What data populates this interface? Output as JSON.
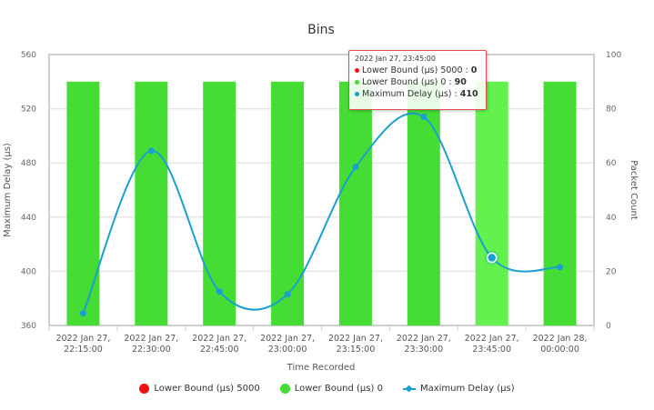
{
  "chart_data": {
    "type": "bar",
    "title": "Bins",
    "xlabel": "Time Recorded",
    "ylabel": "Maximum Delay (µs)",
    "y2label": "Packet Count",
    "categories": [
      [
        "2022 Jan 27,",
        "22:15:00"
      ],
      [
        "2022 Jan 27,",
        "22:30:00"
      ],
      [
        "2022 Jan 27,",
        "22:45:00"
      ],
      [
        "2022 Jan 27,",
        "23:00:00"
      ],
      [
        "2022 Jan 27,",
        "23:15:00"
      ],
      [
        "2022 Jan 27,",
        "23:30:00"
      ],
      [
        "2022 Jan 27,",
        "23:45:00"
      ],
      [
        "2022 Jan 28,",
        "00:00:00"
      ]
    ],
    "ylim": [
      360,
      560
    ],
    "yticks": [
      360,
      400,
      440,
      480,
      520,
      560
    ],
    "y2lim": [
      0,
      100
    ],
    "y2ticks": [
      0,
      20,
      40,
      60,
      80,
      100
    ],
    "grid": true,
    "legend_position": "bottom",
    "series": [
      {
        "name": "Lower Bound (µs) 5000",
        "type": "bar",
        "axis": "right",
        "color": "#ee1111",
        "values": [
          0,
          0,
          0,
          0,
          0,
          0,
          0,
          0
        ]
      },
      {
        "name": "Lower Bound (µs) 0",
        "type": "bar",
        "axis": "right",
        "color": "#45dd34",
        "hover_color": "#63f24d",
        "values": [
          90,
          90,
          90,
          90,
          90,
          90,
          90,
          90
        ]
      },
      {
        "name": "Maximum Delay (µs)",
        "type": "line",
        "axis": "left",
        "color": "#1a9fd0",
        "smooth": true,
        "values": [
          369,
          489,
          385,
          383,
          477,
          514,
          410,
          403
        ]
      }
    ],
    "highlight_index": 6
  },
  "legend": {
    "items": [
      {
        "label": "Lower Bound (µs) 5000",
        "color": "#ee1111",
        "shape": "circle"
      },
      {
        "label": "Lower Bound (µs) 0",
        "color": "#45dd34",
        "shape": "circle"
      },
      {
        "label": "Maximum Delay (µs)",
        "color": "#1a9fd0",
        "shape": "line-diamond"
      }
    ]
  },
  "tooltip": {
    "title": "2022 Jan 27, 23:45:00",
    "rows": [
      {
        "color": "#ee1111",
        "label": "Lower Bound (µs) 5000 : ",
        "value": "0"
      },
      {
        "color": "#45dd34",
        "label": "Lower Bound (µs) 0 : ",
        "value": "90"
      },
      {
        "color": "#1a9fd0",
        "label": "Maximum Delay (µs) : ",
        "value": "410"
      }
    ]
  }
}
